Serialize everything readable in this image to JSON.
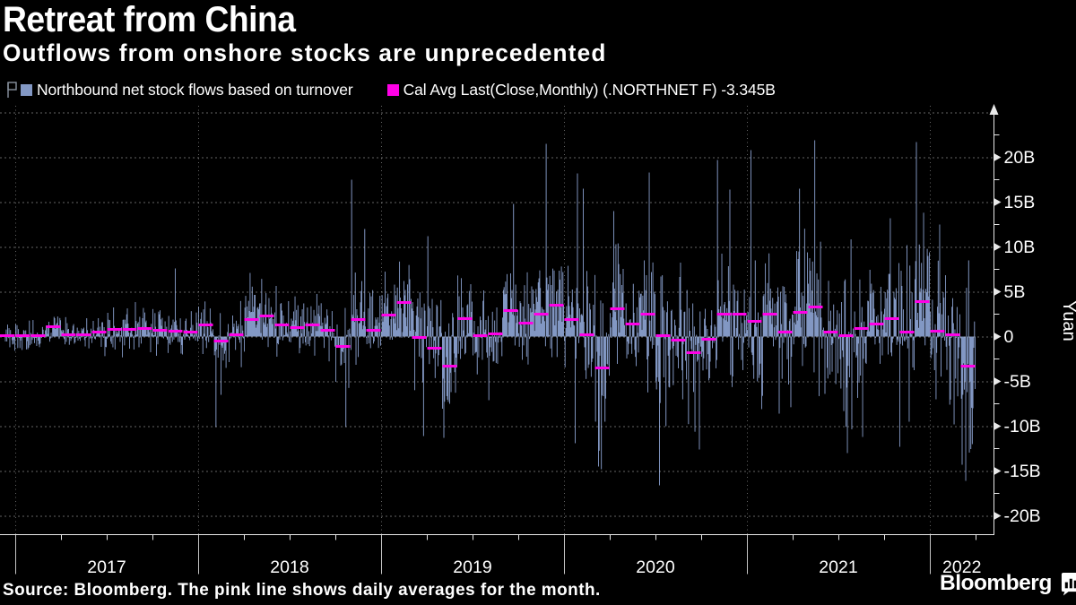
{
  "header": {
    "title": "Retreat from China",
    "subtitle": "Outflows from onshore stocks are unprecedented"
  },
  "legend": {
    "series1_label": "Northbound net stock flows based on turnover",
    "series2_label": "Cal Avg Last(Close,Monthly) (.NORTHNET F) -3.345B"
  },
  "footer": {
    "source_note": "Source: Bloomberg. The pink line shows daily averages for the month.",
    "logo_text": "Bloomberg"
  },
  "chart_data": {
    "type": "bar",
    "title": "Retreat from China",
    "subtitle": "Outflows from onshore stocks are unprecedented",
    "ylabel": "Yuan",
    "unit": "billions of yuan (B)",
    "ylim": [
      -22,
      25.8
    ],
    "grid": "dashed horizontal every 5B, dashed vertical at year starts",
    "legend_position": "top-left",
    "bar_color": "#8398c4",
    "avg_color": "#ff00e6",
    "background": "#000000",
    "ytick_labels": [
      {
        "v": 20,
        "label": "20B"
      },
      {
        "v": 15,
        "label": "15B"
      },
      {
        "v": 10,
        "label": "10B"
      },
      {
        "v": 5,
        "label": "5B"
      },
      {
        "v": 0,
        "label": "0"
      },
      {
        "v": -5,
        "label": "-5B"
      },
      {
        "v": -10,
        "label": "-10B"
      },
      {
        "v": -15,
        "label": "-15B"
      },
      {
        "v": -20,
        "label": "-20B"
      }
    ],
    "ytick_minor_step": 2.5,
    "x_year_labels": [
      "2017",
      "2018",
      "2019",
      "2020",
      "2021",
      "2022"
    ],
    "series_start_month": "2016-12",
    "series_end_month": "2022-03",
    "last_monthly_avg_label": "-3.345B",
    "monthly_avg": [
      0.1,
      0.1,
      0.15,
      1.1,
      0.2,
      0.25,
      0.5,
      0.8,
      0.8,
      0.95,
      0.75,
      0.6,
      0.5,
      1.3,
      -0.5,
      0.2,
      1.9,
      2.3,
      1.3,
      1.05,
      1.3,
      0.7,
      -1.05,
      1.9,
      0.7,
      2.45,
      3.8,
      -0.1,
      -1.3,
      -3.3,
      2.05,
      0.1,
      0.3,
      2.95,
      1.5,
      2.55,
      3.55,
      1.95,
      0.2,
      -3.45,
      3.1,
      1.45,
      2.5,
      0.1,
      -0.4,
      -1.8,
      -0.3,
      2.5,
      2.5,
      1.7,
      2.5,
      0.55,
      2.7,
      3.3,
      0.55,
      0.15,
      0.9,
      1.45,
      2.05,
      0.55,
      3.95,
      0.6,
      0.2,
      -3.345
    ],
    "monthly_daily_volatility": [
      0.8,
      0.8,
      0.8,
      0.9,
      0.8,
      0.9,
      1.1,
      1.0,
      1.1,
      1.1,
      1.2,
      1.5,
      1.2,
      1.6,
      2.2,
      1.8,
      1.9,
      2.0,
      2.0,
      1.8,
      1.9,
      1.8,
      2.4,
      2.6,
      2.2,
      2.2,
      2.4,
      3.0,
      3.0,
      3.2,
      2.4,
      2.6,
      2.6,
      2.8,
      2.4,
      2.6,
      2.8,
      3.4,
      3.6,
      5.0,
      3.4,
      2.8,
      3.2,
      4.6,
      3.4,
      3.6,
      3.0,
      3.6,
      3.6,
      4.0,
      3.6,
      3.4,
      3.8,
      4.2,
      3.6,
      4.4,
      4.0,
      3.4,
      3.6,
      4.0,
      4.4,
      4.2,
      4.0,
      6.0
    ],
    "notable_daily_extremes": [
      [
        11,
        0.5,
        7.6
      ],
      [
        14,
        0.15,
        -10.1
      ],
      [
        14,
        0.5,
        -6.5
      ],
      [
        16,
        0.4,
        7.1
      ],
      [
        22,
        0.7,
        -10.1
      ],
      [
        23,
        0.05,
        17.5
      ],
      [
        23,
        0.95,
        12.0
      ],
      [
        27,
        0.8,
        -11.1
      ],
      [
        28,
        0.05,
        11.2
      ],
      [
        29,
        0.1,
        -11.3
      ],
      [
        29,
        0.5,
        -7.5
      ],
      [
        32,
        0.05,
        -7.1
      ],
      [
        33,
        0.7,
        14.8
      ],
      [
        35,
        0.85,
        21.5
      ],
      [
        37,
        0.76,
        -11.9
      ],
      [
        37,
        0.88,
        18.2
      ],
      [
        38,
        0.24,
        16.5
      ],
      [
        39,
        0.24,
        -14.5
      ],
      [
        39,
        0.47,
        -14.8
      ],
      [
        39,
        0.7,
        -9.5
      ],
      [
        40,
        0.24,
        14.0
      ],
      [
        42,
        0.6,
        18.3
      ],
      [
        43,
        0.25,
        -16.6
      ],
      [
        43,
        0.7,
        -10.0
      ],
      [
        45,
        0.9,
        -12.6
      ],
      [
        47,
        0.06,
        19.7
      ],
      [
        47,
        0.88,
        16.4
      ],
      [
        49,
        0.24,
        20.8
      ],
      [
        51,
        0.12,
        -8.6
      ],
      [
        52,
        0.47,
        16.5
      ],
      [
        53,
        0.47,
        21.9
      ],
      [
        55,
        0.6,
        -13.0
      ],
      [
        56,
        0.6,
        -11.2
      ],
      [
        58,
        0.4,
        13.2
      ],
      [
        59,
        0.0,
        -12.3
      ],
      [
        60,
        0.12,
        21.7
      ],
      [
        61,
        0.4,
        -7.0
      ],
      [
        61,
        0.65,
        12.5
      ],
      [
        62,
        0.3,
        -7.6
      ],
      [
        62,
        0.6,
        -9.8
      ],
      [
        63,
        0.12,
        -14.3
      ],
      [
        63,
        0.35,
        -16.1
      ],
      [
        63,
        0.55,
        8.5
      ],
      [
        63,
        0.8,
        -12.0
      ]
    ]
  }
}
